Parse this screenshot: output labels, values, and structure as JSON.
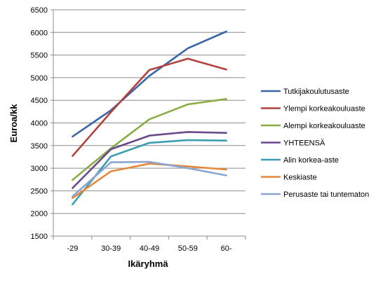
{
  "chart_data": {
    "type": "line",
    "categories": [
      "-29",
      "30-39",
      "40-49",
      "50-59",
      "60-"
    ],
    "xlabel": "Ikäryhmä",
    "ylabel": "Euroa/kk",
    "ylim": [
      1500,
      6500
    ],
    "ytick_step": 500,
    "grid": "horizontal",
    "legend_position": "right",
    "series": [
      {
        "name": "Tutkijakoulutusaste",
        "color": "#3a66a8",
        "values": [
          3700,
          4280,
          5040,
          5650,
          6020
        ]
      },
      {
        "name": "Ylempi korkeakouluaste",
        "color": "#b3413c",
        "values": [
          3270,
          4240,
          5170,
          5420,
          5180
        ]
      },
      {
        "name": "Alempi korkeakouluaste",
        "color": "#8aad46",
        "values": [
          2740,
          3440,
          4080,
          4410,
          4530
        ]
      },
      {
        "name": "YHTEENSÄ",
        "color": "#6a4a8c",
        "values": [
          2560,
          3420,
          3720,
          3800,
          3780
        ]
      },
      {
        "name": "Alin korkea-aste",
        "color": "#3a9db1",
        "values": [
          2200,
          3260,
          3560,
          3620,
          3610
        ]
      },
      {
        "name": "Keskiaste",
        "color": "#e8873a",
        "values": [
          2340,
          2930,
          3100,
          3040,
          2970
        ]
      },
      {
        "name": "Perusaste tai tuntematon",
        "color": "#8ca5d2",
        "values": [
          2380,
          3130,
          3140,
          3000,
          2840
        ]
      }
    ]
  }
}
